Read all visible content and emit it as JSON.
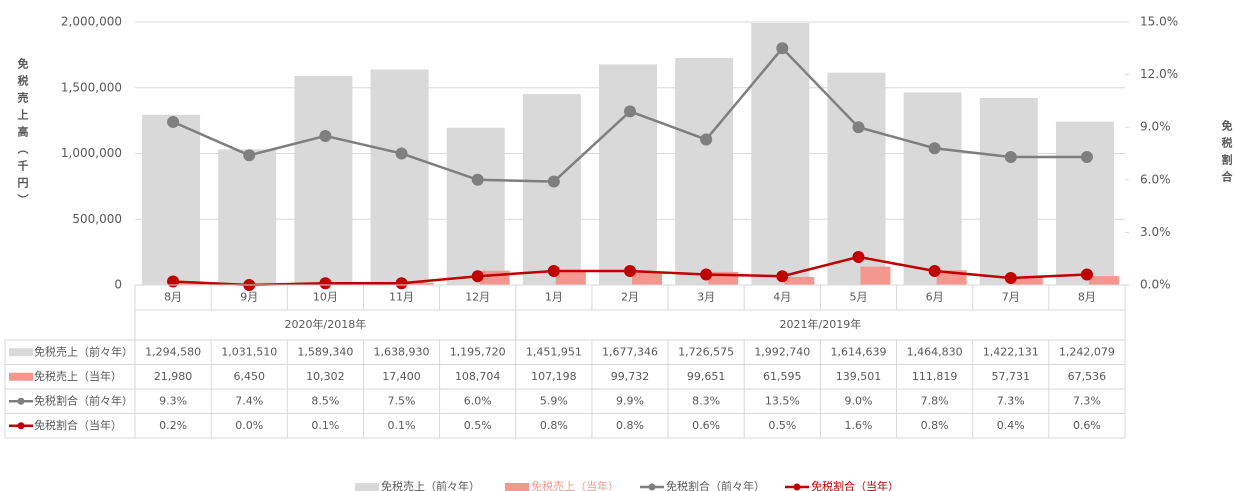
{
  "chart_data": {
    "type": "bar-line-table",
    "ylabel": "免税売上高（千円）",
    "y2label": "免税割合",
    "categories": [
      "8月",
      "9月",
      "10月",
      "11月",
      "12月",
      "1月",
      "2月",
      "3月",
      "4月",
      "5月",
      "6月",
      "7月",
      "8月"
    ],
    "x_groups": [
      {
        "label": "2020年/2018年",
        "count": 5
      },
      {
        "label": "2021年/2019年",
        "count": 8
      }
    ],
    "ylim": [
      0,
      2000000
    ],
    "yticks": [
      {
        "value": 0,
        "label": "0"
      },
      {
        "value": 500000,
        "label": "500,000"
      },
      {
        "value": 1000000,
        "label": "1,000,000"
      },
      {
        "value": 1500000,
        "label": "1,500,000"
      },
      {
        "value": 2000000,
        "label": "2,000,000"
      }
    ],
    "y2lim": [
      0,
      15
    ],
    "y2ticks": [
      {
        "value": 0,
        "label": "0.0%"
      },
      {
        "value": 3,
        "label": "3.0%"
      },
      {
        "value": 6,
        "label": "6.0%"
      },
      {
        "value": 9,
        "label": "9.0%"
      },
      {
        "value": 12,
        "label": "12.0%"
      },
      {
        "value": 15,
        "label": "15.0%"
      }
    ],
    "grid": true,
    "series": [
      {
        "name": "免税売上（前々年）",
        "kind": "bar",
        "color": "#d9d9d9",
        "values": [
          1294580,
          1031510,
          1589340,
          1638930,
          1195720,
          1451951,
          1677346,
          1726575,
          1992740,
          1614639,
          1464830,
          1422131,
          1242079
        ],
        "value_labels": [
          "1,294,580",
          "1,031,510",
          "1,589,340",
          "1,638,930",
          "1,195,720",
          "1,451,951",
          "1,677,346",
          "1,726,575",
          "1,992,740",
          "1,614,639",
          "1,464,830",
          "1,422,131",
          "1,242,079"
        ]
      },
      {
        "name": "免税売上（当年）",
        "kind": "bar",
        "color": "#f4978e",
        "values": [
          21980,
          6450,
          10302,
          17400,
          108704,
          107198,
          99732,
          99651,
          61595,
          139501,
          111819,
          57731,
          67536
        ],
        "value_labels": [
          "21,980",
          "6,450",
          "10,302",
          "17,400",
          "108,704",
          "107,198",
          "99,732",
          "99,651",
          "61,595",
          "139,501",
          "111,819",
          "57,731",
          "67,536"
        ]
      },
      {
        "name": "免税割合（前々年）",
        "kind": "line",
        "axis": "y2",
        "color": "#7f7f7f",
        "values": [
          9.3,
          7.4,
          8.5,
          7.5,
          6.0,
          5.9,
          9.9,
          8.3,
          13.5,
          9.0,
          7.8,
          7.3,
          7.3
        ],
        "value_labels": [
          "9.3%",
          "7.4%",
          "8.5%",
          "7.5%",
          "6.0%",
          "5.9%",
          "9.9%",
          "8.3%",
          "13.5%",
          "9.0%",
          "7.8%",
          "7.3%",
          "7.3%"
        ]
      },
      {
        "name": "免税割合（当年）",
        "kind": "line",
        "axis": "y2",
        "color": "#c00000",
        "values": [
          0.2,
          0.0,
          0.1,
          0.1,
          0.5,
          0.8,
          0.8,
          0.6,
          0.5,
          1.6,
          0.8,
          0.4,
          0.6
        ],
        "value_labels": [
          "0.2%",
          "0.0%",
          "0.1%",
          "0.1%",
          "0.5%",
          "0.8%",
          "0.8%",
          "0.6%",
          "0.5%",
          "1.6%",
          "0.8%",
          "0.4%",
          "0.6%"
        ]
      }
    ]
  }
}
